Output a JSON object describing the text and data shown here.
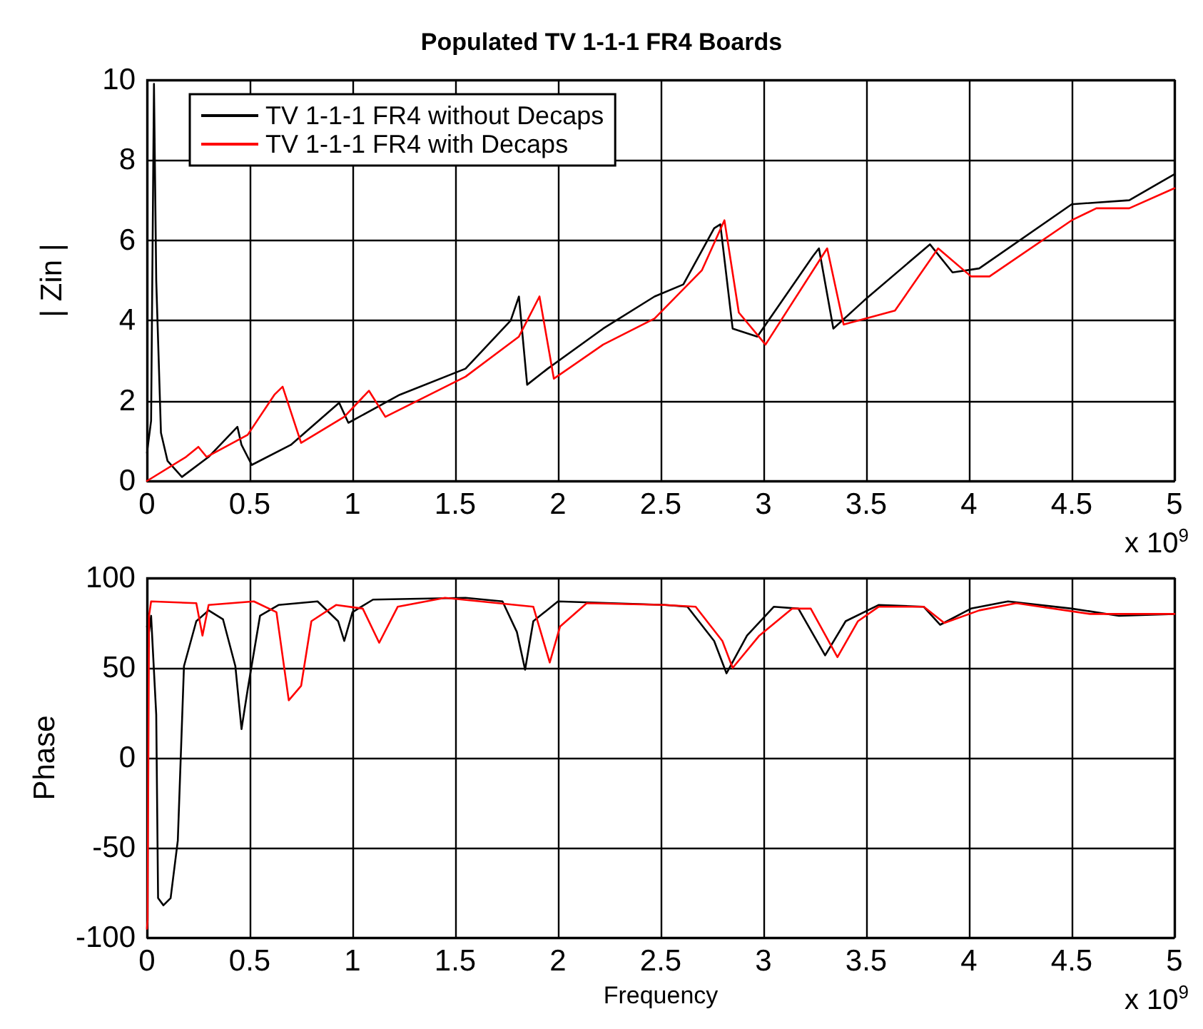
{
  "chart_data": [
    {
      "type": "line",
      "title": "Populated TV 1-1-1 FR4 Boards",
      "ylabel": "| Zin |",
      "annotations": [
        "x 10$^{9}$"
      ],
      "xlim": [
        0,
        5
      ],
      "ylim": [
        0,
        10
      ],
      "xticks": [
        0,
        0.5,
        1,
        1.5,
        2,
        2.5,
        3,
        3.5,
        4,
        4.5,
        5
      ],
      "yticks": [
        0,
        2,
        4,
        6,
        8,
        10
      ],
      "grid": true,
      "legend": "top left",
      "marker": "none",
      "line_style": "solid",
      "series": [
        {
          "name": "TV 1-1-1 FR4 without Decaps",
          "color": "#000000",
          "x": [
            0,
            0.02,
            0.034,
            0.045,
            0.068,
            0.1,
            0.17,
            0.3,
            0.44,
            0.46,
            0.51,
            0.7,
            0.935,
            0.98,
            1.23,
            1.55,
            1.77,
            1.81,
            1.85,
            1.95,
            2.22,
            2.47,
            2.61,
            2.76,
            2.79,
            2.85,
            2.97,
            3.24,
            3.27,
            3.34,
            3.49,
            3.81,
            3.92,
            4.05,
            4.5,
            4.78,
            5
          ],
          "values": [
            0.7,
            1.5,
            9.9,
            5,
            1.2,
            0.5,
            0.1,
            0.6,
            1.35,
            0.9,
            0.4,
            0.9,
            1.95,
            1.45,
            2.15,
            2.8,
            4.0,
            4.6,
            2.4,
            2.8,
            3.8,
            4.6,
            4.9,
            6.3,
            6.4,
            3.8,
            3.6,
            5.6,
            5.8,
            3.8,
            4.5,
            5.9,
            5.2,
            5.3,
            6.9,
            7.0,
            7.65
          ]
        },
        {
          "name": "TV 1-1-1 FR4 with Decaps",
          "color": "#ff0000",
          "x": [
            0,
            0.19,
            0.25,
            0.29,
            0.49,
            0.62,
            0.66,
            0.75,
            0.96,
            1.08,
            1.16,
            1.55,
            1.81,
            1.91,
            1.98,
            2.22,
            2.47,
            2.7,
            2.81,
            2.88,
            3.01,
            3.31,
            3.39,
            3.64,
            3.85,
            4.01,
            4.1,
            4.5,
            4.62,
            4.78,
            5
          ],
          "values": [
            0,
            0.6,
            0.85,
            0.6,
            1.15,
            2.15,
            2.35,
            0.95,
            1.6,
            2.25,
            1.6,
            2.6,
            3.6,
            4.6,
            2.55,
            3.4,
            4.05,
            5.25,
            6.5,
            4.2,
            3.4,
            5.8,
            3.9,
            4.25,
            5.8,
            5.1,
            5.1,
            6.5,
            6.8,
            6.8,
            7.3
          ]
        }
      ]
    },
    {
      "type": "line",
      "xlabel": "Frequency",
      "ylabel": "Phase",
      "annotations": [
        "x 10$^{9}$"
      ],
      "xlim": [
        0,
        5
      ],
      "ylim": [
        -100,
        100
      ],
      "xticks": [
        0,
        0.5,
        1,
        1.5,
        2,
        2.5,
        3,
        3.5,
        4,
        4.5,
        5
      ],
      "yticks": [
        -100,
        -50,
        0,
        50,
        100
      ],
      "grid": true,
      "marker": "none",
      "line_style": "solid",
      "series": [
        {
          "color": "#000000",
          "x": [
            0,
            0.01,
            0.02,
            0.045,
            0.054,
            0.08,
            0.115,
            0.15,
            0.18,
            0.24,
            0.3,
            0.37,
            0.43,
            0.46,
            0.49,
            0.55,
            0.64,
            0.83,
            0.93,
            0.96,
            1.0,
            1.1,
            1.55,
            1.73,
            1.8,
            1.84,
            1.88,
            2.0,
            2.52,
            2.63,
            2.76,
            2.82,
            2.92,
            3.05,
            3.17,
            3.3,
            3.4,
            3.56,
            3.78,
            3.86,
            4.01,
            4.19,
            4.5,
            4.73,
            5
          ],
          "values": [
            73,
            70,
            79,
            24,
            -78,
            -82,
            -78,
            -46,
            51,
            76,
            82,
            77,
            51,
            16,
            38,
            79,
            85,
            87,
            76,
            65,
            81,
            88,
            89,
            87,
            70,
            49,
            76,
            87,
            85,
            84,
            65,
            47,
            68,
            84,
            83,
            57,
            76,
            85,
            84,
            74,
            83,
            87,
            83,
            79,
            80
          ]
        },
        {
          "color": "#ff0000",
          "x": [
            0,
            0.003,
            0.01,
            0.02,
            0.24,
            0.27,
            0.3,
            0.52,
            0.63,
            0.69,
            0.75,
            0.8,
            0.92,
            1.05,
            1.13,
            1.22,
            1.45,
            1.88,
            1.96,
            2.01,
            2.14,
            2.52,
            2.67,
            2.8,
            2.85,
            2.98,
            3.14,
            3.23,
            3.36,
            3.46,
            3.56,
            3.78,
            3.88,
            4.05,
            4.23,
            4.59,
            5
          ],
          "values": [
            -95,
            -90,
            79,
            87,
            86,
            68,
            85,
            87,
            81,
            32,
            40,
            76,
            85,
            83,
            64,
            84,
            89,
            84,
            53,
            73,
            86,
            85,
            84,
            65,
            50,
            68,
            83,
            83,
            56,
            76,
            84,
            84,
            75,
            82,
            86,
            80,
            80
          ]
        }
      ]
    }
  ]
}
